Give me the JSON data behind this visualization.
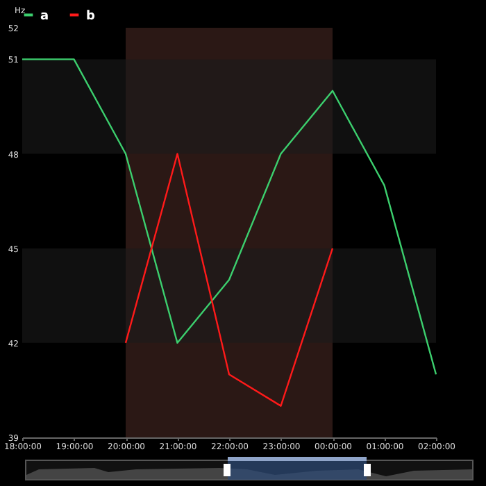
{
  "chart_data": {
    "type": "line",
    "ylabel": "Hz",
    "x": [
      "--01-01T18:00",
      "--01-01T19:00",
      "--01-01T20:00",
      "--01-01T21:00",
      "--01-01T22:00",
      "--01-01T23:00",
      "--01-02T00:00",
      "--01-02T01:00",
      "--01-02T02:00"
    ],
    "series": [
      {
        "name": "a",
        "color": "#3ccf6e",
        "values": [
          51,
          51,
          48,
          42,
          44,
          48,
          50,
          47,
          41
        ]
      },
      {
        "name": "b",
        "color": "#ff1a1a",
        "values": [
          null,
          null,
          42,
          48,
          41,
          40,
          45,
          null,
          null
        ]
      }
    ],
    "xlim": [
      "--01-01T18:00",
      "--01-02T02:00"
    ],
    "xticks": [
      {
        "value": "--01-01T18:00",
        "label": "18:00:00"
      },
      {
        "value": "--01-01T19:00",
        "label": "19:00:00"
      },
      {
        "value": "--01-01T20:00",
        "label": "20:00:00"
      },
      {
        "value": "--01-01T21:00",
        "label": "21:00:00"
      },
      {
        "value": "--01-01T22:00",
        "label": "22:00:00"
      },
      {
        "value": "--01-01T23:00",
        "label": "23:00:00"
      },
      {
        "value": "--01-02T00:00",
        "label": "00:00:00"
      },
      {
        "value": "--01-02T01:00",
        "label": "01:00:00"
      },
      {
        "value": "--01-02T02:00",
        "label": "02:00:00"
      }
    ],
    "ylim": [
      39,
      52
    ],
    "yticks": [
      39,
      42,
      45,
      48,
      51,
      52
    ],
    "bands": [
      {
        "axis": "x",
        "from": "--01-01T20:00",
        "to": "--01-02T00:00",
        "color": "#2b1815"
      },
      {
        "axis": "y",
        "from": 48,
        "to": 51,
        "color": "#1a1a1a"
      },
      {
        "axis": "y",
        "from": 42,
        "to": 45,
        "color": "#1a1a1a"
      }
    ],
    "legend": "top",
    "marker": "none",
    "line_style": "solid"
  }
}
